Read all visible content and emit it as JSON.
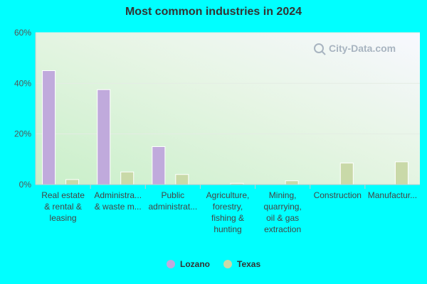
{
  "chart_data": {
    "type": "bar",
    "title": "Most common industries in 2024",
    "categories": [
      [
        "Real estate",
        "& rental &",
        "leasing"
      ],
      [
        "Administra...",
        "& waste m..."
      ],
      [
        "Public",
        "administrat..."
      ],
      [
        "Agriculture,",
        "forestry,",
        "fishing &",
        "hunting"
      ],
      [
        "Mining,",
        "quarrying,",
        "oil & gas",
        "extraction"
      ],
      [
        "Construction"
      ],
      [
        "Manufactur..."
      ]
    ],
    "series": [
      {
        "name": "Lozano",
        "color": "#c0aadc",
        "values": [
          45,
          37.5,
          15,
          0,
          0,
          0,
          0
        ]
      },
      {
        "name": "Texas",
        "color": "#c9d9a8",
        "values": [
          2,
          5,
          4,
          0.5,
          1.5,
          8.5,
          9
        ]
      }
    ],
    "ylim": [
      0,
      60
    ],
    "yticks": [
      0,
      20,
      40,
      60
    ],
    "ytick_labels": [
      "0%",
      "20%",
      "40%",
      "60%"
    ],
    "grid": true,
    "legend_position": "bottom-center"
  },
  "watermark": {
    "text": "City-Data.com",
    "icon": "magnifier-icon"
  }
}
